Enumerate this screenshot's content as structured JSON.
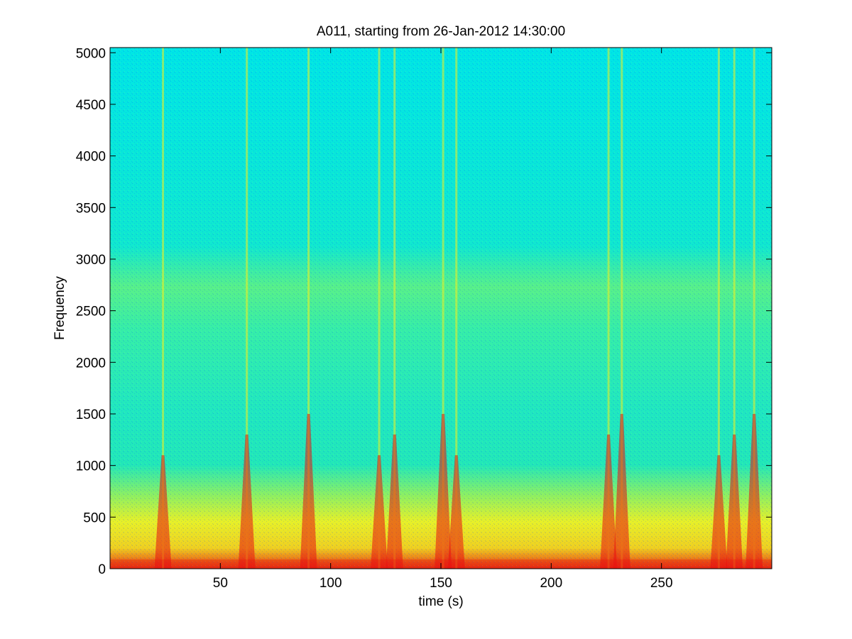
{
  "chart_data": {
    "type": "heatmap",
    "title": "A011, starting from 26-Jan-2012 14:30:00",
    "xlabel": "time (s)",
    "ylabel": "Frequency",
    "xlim": [
      0,
      300
    ],
    "ylim": [
      0,
      5050
    ],
    "x_ticks": [
      50,
      100,
      150,
      200,
      250
    ],
    "y_ticks": [
      0,
      500,
      1000,
      1500,
      2000,
      2500,
      3000,
      3500,
      4000,
      4500,
      5000
    ],
    "grid": false,
    "colormap": "jet",
    "colors": {
      "background": "#00e5e0",
      "mid": "#40f0a0",
      "high": "#f0f020",
      "peak": "#e81010"
    },
    "features": {
      "mid_band_hz": [
        2600,
        3200
      ],
      "low_band_hz": [
        0,
        800
      ],
      "broadband_events_s": [
        24,
        62,
        90,
        122,
        129,
        151,
        157,
        226,
        232,
        276,
        283,
        292
      ]
    }
  }
}
